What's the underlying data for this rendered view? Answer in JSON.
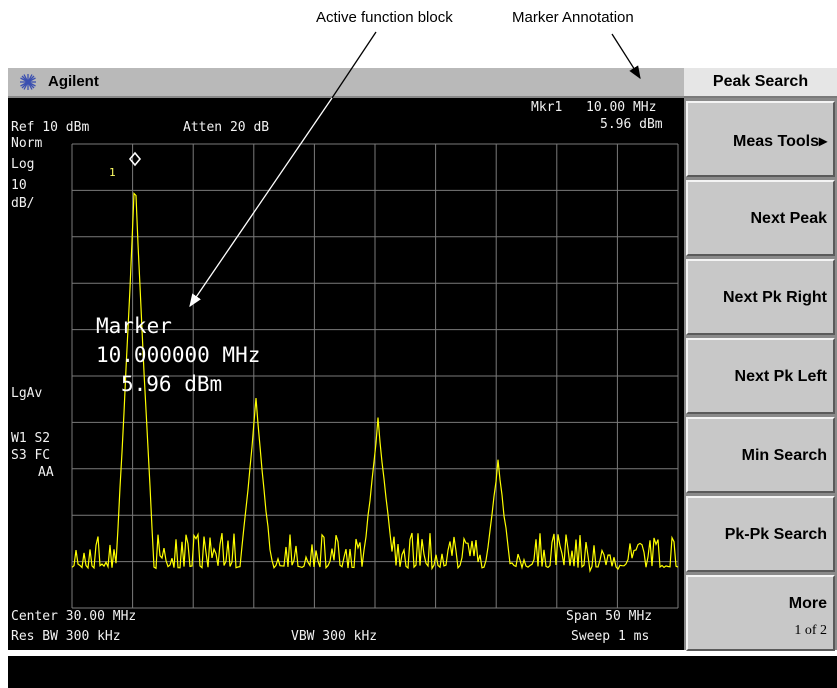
{
  "callouts": {
    "active_function": "Active function block",
    "marker_annotation": "Marker Annotation"
  },
  "titlebar": {
    "brand": "Agilent",
    "logo_icon": "agilent-spark-icon"
  },
  "screen": {
    "marker_readout": {
      "label": "Mkr1",
      "freq": "10.00 MHz",
      "ampl": "5.96 dBm"
    },
    "ref_level": "Ref 10 dBm",
    "attenuation": "Atten 20 dB",
    "left_annotations": {
      "norm": "Norm",
      "log": "Log",
      "scale": "10",
      "unit": "dB/",
      "lgav": "LgAv",
      "w1s2": "W1 S2",
      "s3fc": "S3 FC",
      "aa": "AA"
    },
    "marker_label": "1",
    "active_function": {
      "title": "Marker",
      "freq": "10.000000 MHz",
      "ampl": "5.96 dBm"
    },
    "center": "Center 30.00 MHz",
    "span": "Span 50 MHz",
    "res_bw": "Res BW 300 kHz",
    "vbw": "VBW 300 kHz",
    "sweep": "Sweep 1 ms",
    "trace_color": "#ffff00",
    "grid_color": "#7a7a7a"
  },
  "softkeys": {
    "menu_title": "Peak Search",
    "keys": [
      {
        "label": "Meas Tools▸"
      },
      {
        "label": "Next Peak"
      },
      {
        "label": "Next Pk Right"
      },
      {
        "label": "Next Pk Left"
      },
      {
        "label": "Min Search"
      },
      {
        "label": "Pk-Pk Search"
      },
      {
        "label": "More",
        "sub": "1 of 2"
      }
    ]
  }
}
